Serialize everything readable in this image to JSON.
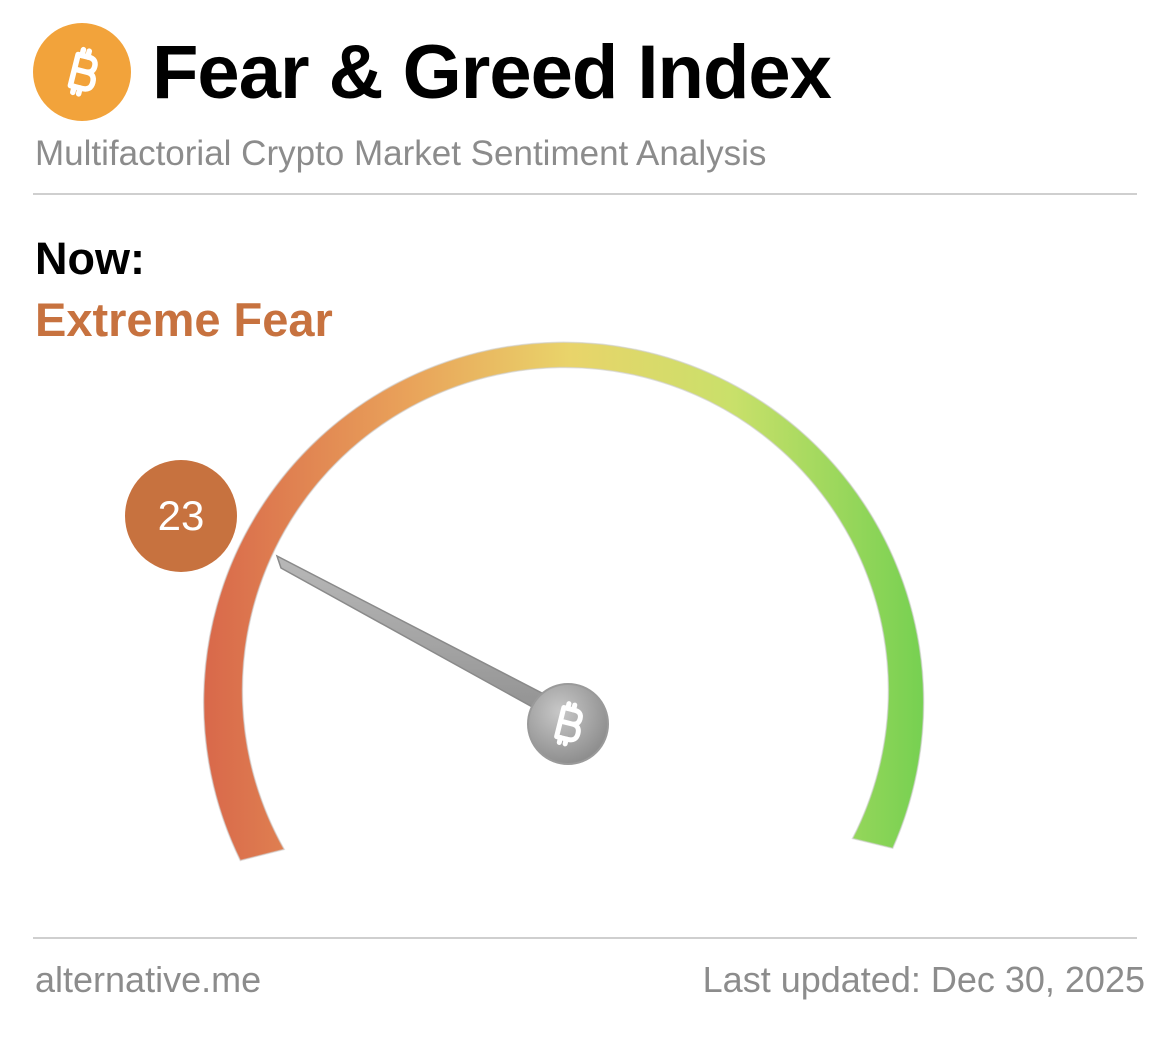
{
  "header": {
    "logo_icon": "bitcoin-icon",
    "title": "Fear & Greed Index",
    "subtitle": "Multifactorial Crypto Market Sentiment Analysis"
  },
  "status": {
    "now_label": "Now:",
    "classification": "Extreme Fear",
    "classification_color": "#c7723f"
  },
  "gauge": {
    "value": "23",
    "min": 0,
    "max": 100,
    "colors": {
      "fear": "#d8674a",
      "neutral": "#e9d46a",
      "greed": "#6fcf4f"
    },
    "needle_icon": "bitcoin-icon"
  },
  "footer": {
    "source": "alternative.me",
    "last_updated": "Last updated: Dec 30, 2025"
  }
}
